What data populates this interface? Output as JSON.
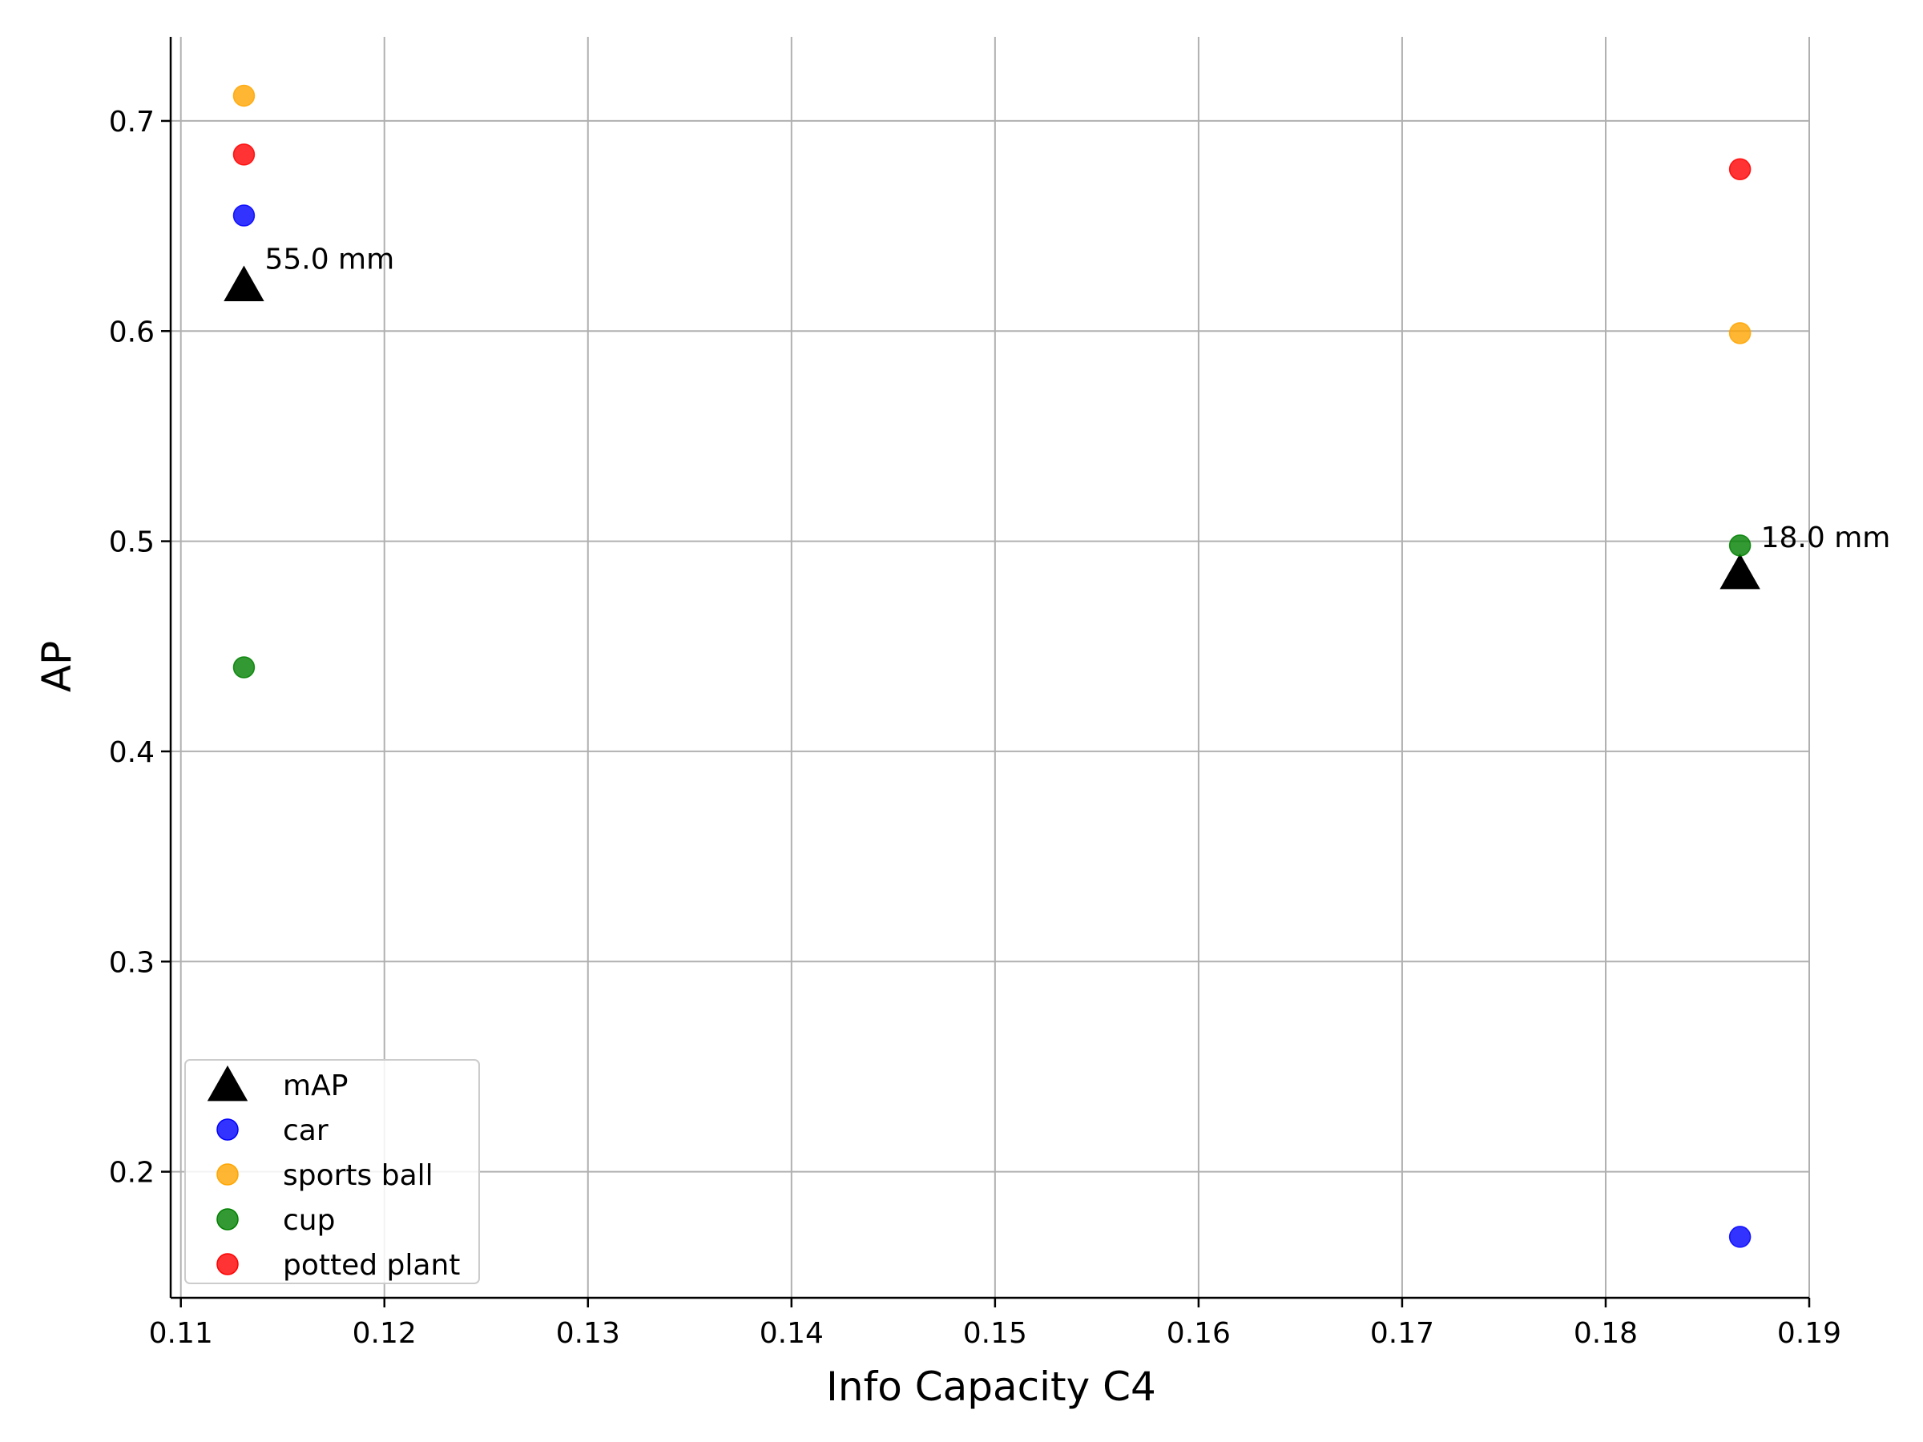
{
  "chart_data": {
    "type": "scatter",
    "title": "",
    "xlabel": "Info Capacity C4",
    "ylabel": "AP",
    "xlim": [
      0.1095,
      0.19
    ],
    "ylim": [
      0.14,
      0.74
    ],
    "xticks": [
      0.11,
      0.12,
      0.13,
      0.14,
      0.15,
      0.16,
      0.17,
      0.18,
      0.19
    ],
    "xtick_labels": [
      "0.11",
      "0.12",
      "0.13",
      "0.14",
      "0.15",
      "0.16",
      "0.17",
      "0.18",
      "0.19"
    ],
    "yticks": [
      0.2,
      0.3,
      0.4,
      0.5,
      0.6,
      0.7
    ],
    "ytick_labels": [
      "0.2",
      "0.3",
      "0.4",
      "0.5",
      "0.6",
      "0.7"
    ],
    "grid": true,
    "legend_position": "lower-left",
    "series": [
      {
        "name": "mAP",
        "marker": "triangle",
        "color": "#000000",
        "x": [
          0.1131,
          0.1866
        ],
        "y": [
          0.622,
          0.485
        ]
      },
      {
        "name": "car",
        "marker": "circle",
        "color": "#0000ff",
        "x": [
          0.1131,
          0.1866
        ],
        "y": [
          0.655,
          0.169
        ]
      },
      {
        "name": "sports ball",
        "marker": "circle",
        "color": "#ffa500",
        "x": [
          0.1131,
          0.1866
        ],
        "y": [
          0.712,
          0.599
        ]
      },
      {
        "name": "cup",
        "marker": "circle",
        "color": "#008000",
        "x": [
          0.1131,
          0.1866
        ],
        "y": [
          0.44,
          0.498
        ]
      },
      {
        "name": "potted plant",
        "marker": "circle",
        "color": "#ff0000",
        "x": [
          0.1131,
          0.1866
        ],
        "y": [
          0.684,
          0.677
        ]
      }
    ],
    "annotations": [
      {
        "text": "55.0 mm",
        "x": 0.1131,
        "y": 0.622
      },
      {
        "text": "18.0 mm",
        "x": 0.1866,
        "y": 0.485
      }
    ]
  }
}
